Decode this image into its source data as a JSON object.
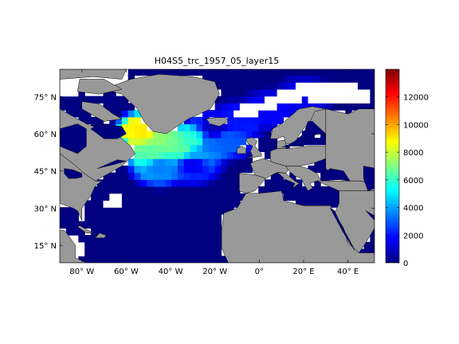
{
  "chart_data": {
    "type": "heatmap",
    "title": "H04S5_trc_1957_05_layer15",
    "map": {
      "lon_range": [
        -90,
        52
      ],
      "lat_range": [
        8,
        86
      ],
      "land_color": "#999999",
      "missing_color": "#ffffff",
      "ocean_low_color": "#00007f",
      "x_ticks": [
        {
          "value": -80,
          "label": "80° W"
        },
        {
          "value": -60,
          "label": "60° W"
        },
        {
          "value": -40,
          "label": "40° W"
        },
        {
          "value": -20,
          "label": "20° W"
        },
        {
          "value": 0,
          "label": "0°"
        },
        {
          "value": 20,
          "label": "20° E"
        },
        {
          "value": 40,
          "label": "40° E"
        }
      ],
      "y_ticks": [
        {
          "value": 15,
          "label": "15° N"
        },
        {
          "value": 30,
          "label": "30° N"
        },
        {
          "value": 45,
          "label": "45° N"
        },
        {
          "value": 60,
          "label": "60° N"
        },
        {
          "value": 75,
          "label": "75° N"
        }
      ]
    },
    "colorbar": {
      "colormap": "jet",
      "range": [
        0,
        14000
      ],
      "ticks": [
        0,
        2000,
        4000,
        6000,
        8000,
        10000,
        12000
      ]
    },
    "field_samples": [
      {
        "lon": -52,
        "lat": 61,
        "value": 9000
      },
      {
        "lon": -45,
        "lat": 58,
        "value": 7200
      },
      {
        "lon": -40,
        "lat": 56,
        "value": 6800
      },
      {
        "lon": -35,
        "lat": 54,
        "value": 6500
      },
      {
        "lon": -48,
        "lat": 52,
        "value": 6500
      },
      {
        "lon": -30,
        "lat": 57,
        "value": 6000
      },
      {
        "lon": -28,
        "lat": 52,
        "value": 4000
      },
      {
        "lon": -22,
        "lat": 56,
        "value": 3200
      },
      {
        "lon": -15,
        "lat": 58,
        "value": 3000
      },
      {
        "lon": -10,
        "lat": 65,
        "value": 2000
      },
      {
        "lon": 5,
        "lat": 70,
        "value": 1600
      },
      {
        "lon": 20,
        "lat": 75,
        "value": 1500
      },
      {
        "lon": -30,
        "lat": 48,
        "value": 1500
      },
      {
        "lon": -20,
        "lat": 62,
        "value": 700
      },
      {
        "lon": -45,
        "lat": 47,
        "value": 3500
      }
    ]
  }
}
